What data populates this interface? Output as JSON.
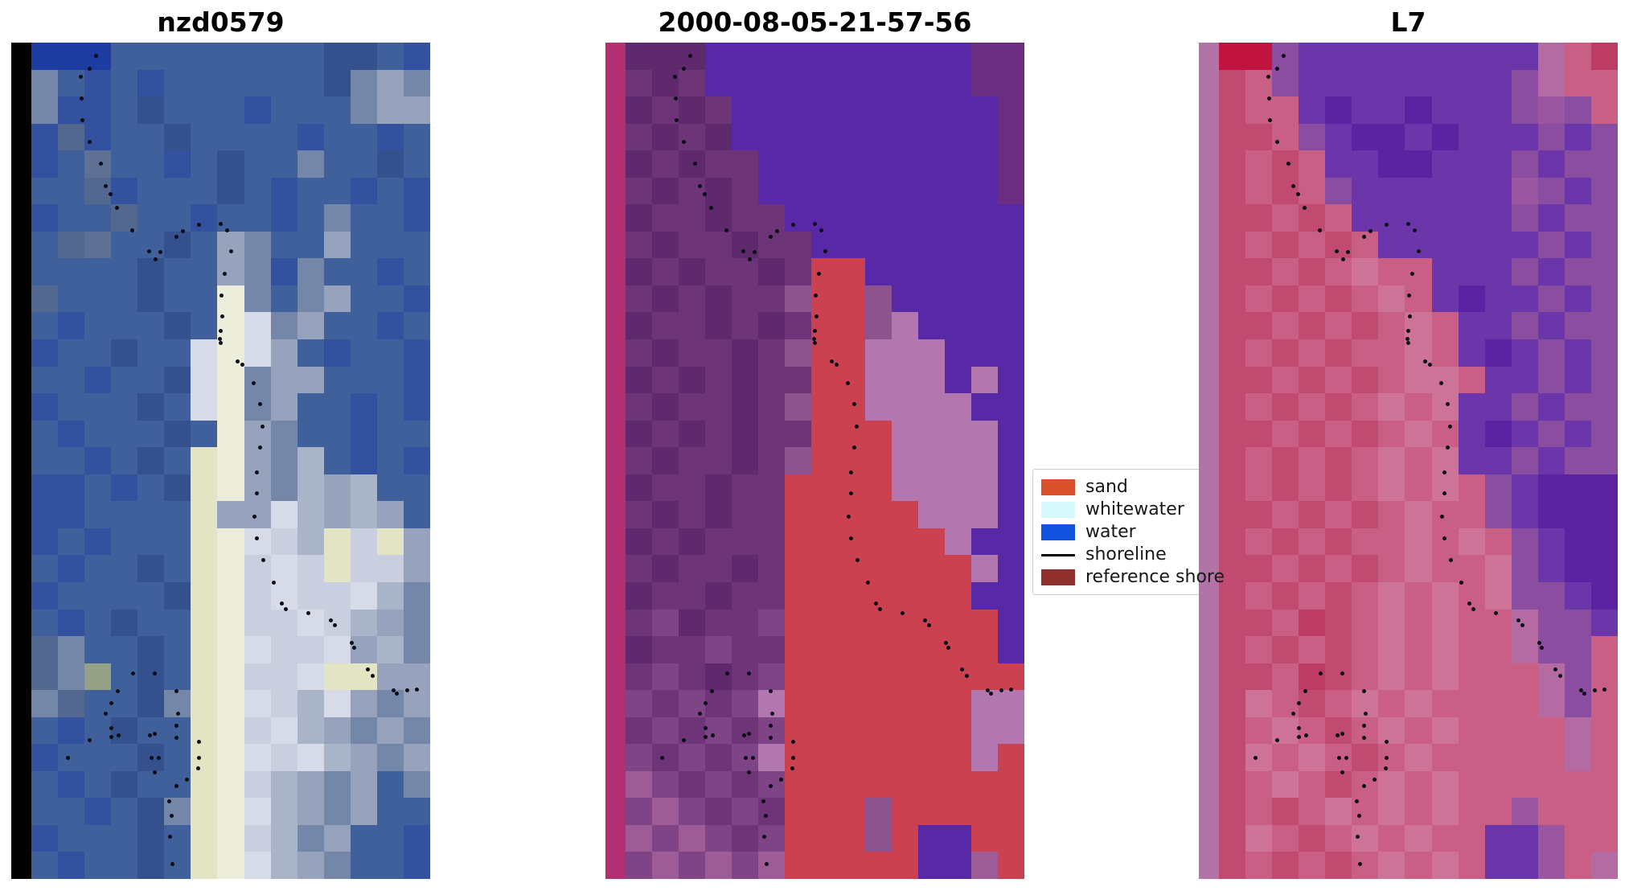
{
  "figure": {
    "background": "#ffffff"
  },
  "chart_data": [
    {
      "type": "heatmap",
      "kind": "rgb-satellite-image",
      "title": "nzd0579",
      "grid_cols": 16,
      "grid_rows": 31,
      "palette": {
        "K": "#000000",
        "A": "#1d3da3",
        "B": "#33519f",
        "C": "#40609c",
        "D": "#34508d",
        "E": "#53688f",
        "F": "#5e7195",
        "G": "#7587a8",
        "H": "#97a3bd",
        "I": "#c9cfdf",
        "W": "#ecedda",
        "X": "#e3e4c4",
        "Y": "#d7dbe8",
        "Z": "#aab4c9",
        "T": "#96a086"
      },
      "rows": [
        "KAAACCCCCCCCDDCB",
        "KGCBCBCCCCCCDGHG",
        "KGBBCDCCCBCCCGHH",
        "KBEBCCDCCCCBCCBC",
        "KBCFCCBCDCCGCCDC",
        "KCCEBCCCDCBCCBCB",
        "KBCCECCBCCBCGCCB",
        "KCEFCCDCHGCCHCCC",
        "KCCCCDCCHGBGCCBC",
        "KECCCDCCWGCGHCCB",
        "KCBCCCDCWYGHCCBC",
        "KBCCDCCYWYHCBCCB",
        "KCCBCCDYWGHHCCCB",
        "KBCCCDCYWGHCCBCB",
        "KCBCCCDCWHGCCBCC",
        "KCCBCDCXWHGZCBCB",
        "KBBCBCDXWHGZHZCC",
        "KBBCCCCXHHYZHZHC",
        "KBCBCCCXWYIZXIXH",
        "KCBCCDCXWIYIXIIH",
        "KBCCCCDXWIYIIYZG",
        "KCBCDCCXWIIYIZHG",
        "KEGCCDCXWYIIYHZG",
        "KEGTCDCXWIIYXXHH",
        "KGECCDGXWYIZYHGH",
        "KCBCDCCXWIYZHGHG",
        "KBCCCDCXWYIYZHGH",
        "KCBCDCCXWIZHGHCG",
        "KCCBCDGXWYZHGHCC",
        "KBCCCDCXWIZGHCCB",
        "KCBCCDCXWYZHGCCB"
      ]
    },
    {
      "type": "heatmap",
      "kind": "classified-image",
      "title": "2000-08-05-21-57-56",
      "grid_cols": 16,
      "grid_rows": 31,
      "palette": {
        "M": "#b12f72",
        "P": "#5e296d",
        "Q": "#6d3478",
        "R": "#7e4486",
        "S": "#8d538f",
        "N": "#9d5c95",
        "V": "#5829a7",
        "W": "#6b2d80",
        "X": "#cb4150",
        "O": "#b277ae"
      },
      "rows": [
        "MPPPVVVVVVVVVVWW",
        "MQPQVVVVVVVVVVWW",
        "MPQPQVVVVVVVVVVW",
        "MQPQPVVVVVVVVVVW",
        "MPQPQQVVVVVVVVVW",
        "MQPQPQVVVVVVVVVW",
        "MPQQPQQVVVVVVVVV",
        "MQPQQPQQVVVVVVVV",
        "MPQPQQPQXXVVVVVV",
        "MQPQPQQSXXSVVVVV",
        "MPQQPQPQXXSOVVVV",
        "MQPQQPQSXXOOOVVV",
        "MPQPQPQQXXOOOVOV",
        "MQPQQPQSXXOOOOVV",
        "MPQPQPQQXXXOOOOV",
        "MQPQQPQSXXXOOOOV",
        "MPQQPQQXXXXOOOOV",
        "MQPQPQQXXXXXOOOV",
        "MPQPQQQXXXXXXOVV",
        "MQPQQPQXXXXXXXOV",
        "MPQQPQQXXXXXXXVV",
        "MQRPQQRXXXXXXXXV",
        "MPQQRQQXXXXXXXXV",
        "MQRQPQRXXXXXXXXX",
        "MRQRQROXXXXXXXOO",
        "MQRQRQRXXXXXXXOO",
        "MRQRQROXXXXXXXOX",
        "MNRQRQRXXXXXXXXX",
        "MRNRQRQXXXSXXXXX",
        "MNRNRQRXXXSXVVXX",
        "MRNRNRNXXXXXVVNX"
      ]
    },
    {
      "type": "heatmap",
      "kind": "false-color-image",
      "title": "L7",
      "grid_cols": 16,
      "grid_rows": 31,
      "palette": {
        "U": "#b273a7",
        "C": "#c11340",
        "R": "#c14a71",
        "S": "#c95f84",
        "T": "#ce7398",
        "D": "#bc3c63",
        "V": "#6b36aa",
        "W": "#5b23a2",
        "X": "#8b4d9f",
        "P": "#9a57a0",
        "N": "#b36ba2"
      },
      "rows": [
        "UCCXVVVVVVVVVNSD",
        "URSXVVVVVVVVXNSS",
        "URSSVWVVWVVVXPXS",
        "URRSXVWWVWVVVXVX",
        "URSRSVVWWVVVXVXX",
        "URSRSXVVVVVVPXVX",
        "URRSRSVVVVVVXVXX",
        "URSRSRSVVVVVVXVX",
        "URRSRSTSSVVVXVXX",
        "URSRSRSTSVWVVXVX",
        "URRSRSRSTSVVXVXX",
        "URSRSRSSTSVWVXVX",
        "URRSRSRSTTSVVXVX",
        "URSRSRSTSTVVXVXX",
        "URRSRSRSTSVWVXVX",
        "URSRSRSTSTVVXVXX",
        "URSRSRSTSTSXVWWW",
        "URRSRSRSTSSXVWWW",
        "URSRSRSSTSTSXVWW",
        "URRSRSRSTSSTXVWW",
        "URSRSRSTSTSTXXVW",
        "URRSDRSTSTSSNXXV",
        "URSRSRSTSTSSNXXS",
        "URRSDRSTSTSSSNXS",
        "URTSRSTSTSSSSNXS",
        "URSTSRSTSTSSSSNS",
        "URTSTSRSTSSSSSNS",
        "URSTSRSTSTSSSSSS",
        "URSRSTSTSTSSPSSS",
        "URTSRSTSTSSVVPSS",
        "URSRSRSTSTSVVPSN"
      ]
    }
  ],
  "shoreline": {
    "color": "#0d0d18",
    "points": [
      [
        0.202,
        0.015
      ],
      [
        0.186,
        0.031
      ],
      [
        0.166,
        0.04
      ],
      [
        0.167,
        0.066
      ],
      [
        0.169,
        0.092
      ],
      [
        0.186,
        0.118
      ],
      [
        0.213,
        0.144
      ],
      [
        0.225,
        0.171
      ],
      [
        0.236,
        0.181
      ],
      [
        0.251,
        0.197
      ],
      [
        0.288,
        0.224
      ],
      [
        0.394,
        0.232
      ],
      [
        0.409,
        0.225
      ],
      [
        0.447,
        0.217
      ],
      [
        0.499,
        0.216
      ],
      [
        0.514,
        0.224
      ],
      [
        0.328,
        0.249
      ],
      [
        0.355,
        0.25
      ],
      [
        0.344,
        0.259
      ],
      [
        0.524,
        0.249
      ],
      [
        0.509,
        0.276
      ],
      [
        0.501,
        0.302
      ],
      [
        0.503,
        0.327
      ],
      [
        0.499,
        0.344
      ],
      [
        0.497,
        0.354
      ],
      [
        0.499,
        0.359
      ],
      [
        0.539,
        0.381
      ],
      [
        0.551,
        0.385
      ],
      [
        0.577,
        0.407
      ],
      [
        0.593,
        0.432
      ],
      [
        0.599,
        0.459
      ],
      [
        0.593,
        0.484
      ],
      [
        0.585,
        0.513
      ],
      [
        0.585,
        0.538
      ],
      [
        0.58,
        0.566
      ],
      [
        0.585,
        0.592
      ],
      [
        0.601,
        0.618
      ],
      [
        0.626,
        0.645
      ],
      [
        0.645,
        0.67
      ],
      [
        0.654,
        0.677
      ],
      [
        0.708,
        0.682
      ],
      [
        0.762,
        0.69
      ],
      [
        0.771,
        0.696
      ],
      [
        0.812,
        0.717
      ],
      [
        0.818,
        0.723
      ],
      [
        0.851,
        0.749
      ],
      [
        0.862,
        0.757
      ],
      [
        0.912,
        0.774
      ],
      [
        0.919,
        0.778
      ],
      [
        0.944,
        0.774
      ],
      [
        0.967,
        0.773
      ],
      [
        0.29,
        0.754
      ],
      [
        0.342,
        0.754
      ],
      [
        0.253,
        0.775
      ],
      [
        0.394,
        0.775
      ],
      [
        0.238,
        0.789
      ],
      [
        0.225,
        0.802
      ],
      [
        0.397,
        0.802
      ],
      [
        0.394,
        0.816
      ],
      [
        0.238,
        0.819
      ],
      [
        0.238,
        0.83
      ],
      [
        0.255,
        0.828
      ],
      [
        0.33,
        0.828
      ],
      [
        0.342,
        0.826
      ],
      [
        0.186,
        0.834
      ],
      [
        0.394,
        0.831
      ],
      [
        0.447,
        0.836
      ],
      [
        0.134,
        0.855
      ],
      [
        0.334,
        0.855
      ],
      [
        0.351,
        0.855
      ],
      [
        0.447,
        0.855
      ],
      [
        0.445,
        0.867
      ],
      [
        0.342,
        0.872
      ],
      [
        0.419,
        0.881
      ],
      [
        0.394,
        0.888
      ],
      [
        0.376,
        0.907
      ],
      [
        0.382,
        0.924
      ],
      [
        0.378,
        0.949
      ],
      [
        0.384,
        0.982
      ]
    ]
  },
  "legend": {
    "background": "#ffffff",
    "border_color": "#cccccc",
    "text_color": "#181818",
    "items": [
      {
        "label": "sand",
        "swatch": "patch",
        "color": "#d9512c"
      },
      {
        "label": "whitewater",
        "swatch": "patch",
        "color": "#d6f9fb"
      },
      {
        "label": "water",
        "swatch": "patch",
        "color": "#1254e0"
      },
      {
        "label": "shoreline",
        "swatch": "line",
        "color": "#000000"
      },
      {
        "label": "reference shorel",
        "swatch": "patch",
        "color": "#8f2f2d"
      }
    ]
  }
}
